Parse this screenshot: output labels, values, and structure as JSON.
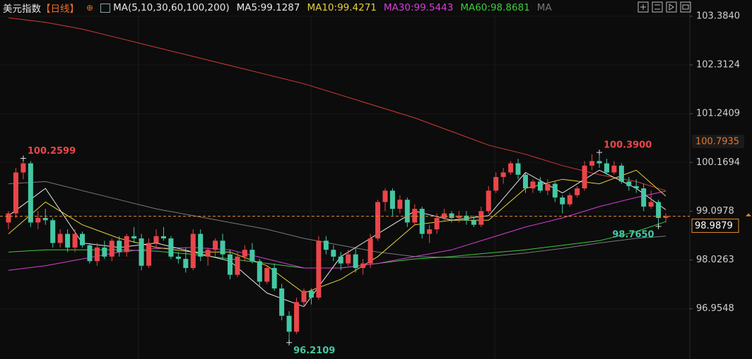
{
  "chart_data": {
    "type": "candlestick",
    "title": "美元指数",
    "period": "【日线】",
    "ma_label": "MA(5,10,30,60,100,200)",
    "legend": [
      {
        "text": "MA5:99.1287",
        "color": "#e8e8e8"
      },
      {
        "text": "MA10:99.4271",
        "color": "#e3d23c"
      },
      {
        "text": "MA30:99.5443",
        "color": "#d63fd6"
      },
      {
        "text": "MA60:98.8681",
        "color": "#3ccc3c"
      },
      {
        "text": "MA",
        "color": "#777777"
      }
    ],
    "up_color": "#e9464a",
    "down_color": "#44c8a4",
    "ylim": [
      95.85,
      103.74
    ],
    "yticks": [
      {
        "value": 103.384,
        "label": "103.3840"
      },
      102.3124,
      101.2409,
      100.1694,
      99.0978,
      98.0263,
      96.9548
    ],
    "open": [
      98.85,
      99.05,
      99.95,
      100.15,
      98.85,
      98.95,
      98.9,
      98.4,
      98.6,
      98.3,
      98.6,
      98.35,
      98.0,
      98.3,
      98.1,
      98.45,
      98.2,
      98.55,
      98.5,
      97.9,
      98.4,
      98.55,
      98.5,
      98.1,
      98.05,
      97.85,
      98.6,
      98.1,
      98.25,
      98.45,
      98.15,
      97.7,
      98.1,
      98.25,
      98.0,
      97.55,
      97.85,
      97.4,
      96.8,
      96.45,
      97.1,
      97.35,
      97.2,
      98.45,
      98.25,
      98.1,
      97.95,
      98.15,
      97.85,
      97.95,
      98.5,
      99.3,
      99.55,
      99.15,
      99.35,
      98.85,
      99.15,
      98.6,
      98.7,
      98.95,
      99.05,
      98.95,
      99.0,
      98.9,
      98.8,
      99.1,
      99.55,
      99.85,
      99.95,
      100.15,
      99.9,
      99.6,
      99.75,
      99.55,
      99.7,
      99.4,
      99.25,
      99.45,
      99.6,
      100.1,
      100.2,
      100.15,
      99.95,
      100.1,
      99.75,
      99.65,
      99.6,
      99.2,
      99.3,
      98.95
    ],
    "high": [
      99.1,
      100.05,
      100.2599,
      100.2,
      99.1,
      99.15,
      98.95,
      98.7,
      98.7,
      98.7,
      98.65,
      98.4,
      98.4,
      98.45,
      98.5,
      98.55,
      98.6,
      98.75,
      98.6,
      98.5,
      98.7,
      98.75,
      98.55,
      98.2,
      98.3,
      98.7,
      98.7,
      98.3,
      98.5,
      98.6,
      98.25,
      98.2,
      98.35,
      98.4,
      98.05,
      97.9,
      97.95,
      97.5,
      96.9,
      97.2,
      97.4,
      97.4,
      98.55,
      98.55,
      98.35,
      98.2,
      98.25,
      98.3,
      98.05,
      98.6,
      99.35,
      99.6,
      99.6,
      99.45,
      99.4,
      99.25,
      99.2,
      98.8,
      99.05,
      99.15,
      99.1,
      99.1,
      99.1,
      99.0,
      99.2,
      99.65,
      99.95,
      100.05,
      100.2,
      100.25,
      99.95,
      99.8,
      99.85,
      99.8,
      99.75,
      99.45,
      99.5,
      99.65,
      100.2,
      100.35,
      100.39,
      100.25,
      100.2,
      100.15,
      99.85,
      99.8,
      99.7,
      99.55,
      99.35,
      99.05
    ],
    "low": [
      98.7,
      98.95,
      99.8,
      98.75,
      98.7,
      98.8,
      98.3,
      98.3,
      98.2,
      98.2,
      98.3,
      97.95,
      97.9,
      98.05,
      98.0,
      98.1,
      98.1,
      98.4,
      97.8,
      97.85,
      98.3,
      98.45,
      98.05,
      97.95,
      97.75,
      97.8,
      98.0,
      97.9,
      98.1,
      98.05,
      97.6,
      97.65,
      98.0,
      97.95,
      97.45,
      97.5,
      97.35,
      96.7,
      96.2109,
      96.4,
      97.0,
      97.05,
      97.15,
      98.15,
      98.0,
      97.8,
      97.9,
      97.75,
      97.7,
      97.85,
      98.45,
      99.1,
      99.0,
      99.05,
      98.75,
      98.8,
      98.5,
      98.4,
      98.6,
      98.9,
      98.85,
      98.85,
      98.8,
      98.75,
      98.75,
      99.05,
      99.5,
      99.7,
      99.9,
      99.8,
      99.5,
      99.5,
      99.5,
      99.45,
      99.3,
      99.05,
      99.2,
      99.4,
      99.55,
      100.0,
      100.05,
      99.9,
      99.9,
      99.7,
      99.55,
      99.5,
      99.1,
      99.15,
      98.765,
      98.85
    ],
    "close": [
      99.05,
      99.95,
      100.15,
      98.85,
      98.95,
      98.9,
      98.4,
      98.6,
      98.3,
      98.6,
      98.35,
      98.0,
      98.3,
      98.1,
      98.45,
      98.2,
      98.55,
      98.5,
      97.9,
      98.4,
      98.55,
      98.5,
      98.1,
      98.05,
      97.85,
      98.6,
      98.1,
      98.25,
      98.45,
      98.15,
      97.7,
      98.1,
      98.25,
      98.0,
      97.55,
      97.85,
      97.4,
      96.8,
      96.45,
      97.1,
      97.35,
      97.2,
      98.45,
      98.25,
      98.1,
      97.95,
      98.15,
      97.85,
      97.95,
      98.5,
      99.3,
      99.55,
      99.15,
      99.35,
      98.85,
      99.15,
      98.6,
      98.7,
      98.95,
      99.05,
      98.95,
      99.0,
      98.9,
      98.8,
      99.1,
      99.55,
      99.85,
      99.95,
      100.15,
      99.9,
      99.6,
      99.75,
      99.55,
      99.7,
      99.4,
      99.25,
      99.45,
      99.6,
      100.1,
      100.2,
      100.15,
      99.95,
      100.1,
      99.75,
      99.65,
      99.6,
      99.2,
      99.3,
      98.95,
      98.99
    ],
    "series": [
      {
        "color": "#d23b35",
        "x": [
          0,
          5,
          10,
          15,
          20,
          25,
          30,
          35,
          40,
          45,
          50,
          55,
          60,
          65,
          70,
          75,
          80,
          85,
          89
        ],
        "values": [
          103.35,
          103.25,
          103.1,
          102.9,
          102.7,
          102.5,
          102.3,
          102.1,
          101.9,
          101.65,
          101.4,
          101.15,
          100.85,
          100.55,
          100.35,
          100.1,
          99.9,
          99.75,
          99.55
        ]
      },
      {
        "color": "#7a7a7a",
        "x": [
          0,
          5,
          10,
          15,
          20,
          25,
          30,
          35,
          40,
          45,
          50,
          55,
          60,
          65,
          70,
          75,
          80,
          85,
          89
        ],
        "values": [
          99.7,
          99.75,
          99.55,
          99.35,
          99.15,
          99.0,
          98.85,
          98.7,
          98.5,
          98.35,
          98.2,
          98.1,
          98.08,
          98.1,
          98.18,
          98.28,
          98.4,
          98.5,
          98.55
        ]
      },
      {
        "color": "#3ccc3c",
        "x": [
          0,
          5,
          10,
          15,
          20,
          25,
          30,
          35,
          40,
          45,
          50,
          55,
          60,
          65,
          70,
          75,
          80,
          85,
          89
        ],
        "values": [
          98.2,
          98.25,
          98.25,
          98.25,
          98.22,
          98.15,
          98.05,
          97.95,
          97.85,
          97.85,
          97.95,
          98.05,
          98.1,
          98.18,
          98.25,
          98.35,
          98.45,
          98.65,
          98.87
        ]
      },
      {
        "color": "#d63fd6",
        "x": [
          0,
          5,
          10,
          15,
          20,
          25,
          30,
          35,
          40,
          45,
          50,
          55,
          60,
          65,
          70,
          75,
          80,
          85,
          89
        ],
        "values": [
          97.8,
          97.9,
          98.05,
          98.2,
          98.28,
          98.3,
          98.25,
          98.05,
          97.85,
          97.85,
          97.95,
          98.1,
          98.25,
          98.5,
          98.75,
          98.95,
          99.2,
          99.4,
          99.54
        ]
      },
      {
        "color": "#e3d23c",
        "x": [
          0,
          5,
          10,
          15,
          20,
          25,
          30,
          35,
          40,
          45,
          50,
          55,
          60,
          65,
          70,
          75,
          80,
          85,
          89
        ],
        "values": [
          98.6,
          99.3,
          98.8,
          98.5,
          98.3,
          98.2,
          98.2,
          97.9,
          97.3,
          97.6,
          98.1,
          98.8,
          98.9,
          98.9,
          99.6,
          99.8,
          99.7,
          100.0,
          99.43
        ]
      },
      {
        "color": "#e8e8e8",
        "x": [
          0,
          5,
          10,
          15,
          20,
          25,
          30,
          35,
          40,
          45,
          50,
          55,
          60,
          65,
          70,
          75,
          80,
          85,
          89
        ],
        "values": [
          99.0,
          99.6,
          98.4,
          98.3,
          98.4,
          98.2,
          98.0,
          97.3,
          97.0,
          98.1,
          98.6,
          99.1,
          98.9,
          99.0,
          99.95,
          99.5,
          100.0,
          99.6,
          99.13
        ]
      }
    ],
    "annotations": [
      {
        "value": 100.2599,
        "color": "#e9464a"
      },
      {
        "value": 96.2109,
        "color": "#44c8a4"
      },
      {
        "value": {
          "value": 100.39,
          "label": "100.3900"
        },
        "color": "#e9464a"
      },
      {
        "value": {
          "value": 98.765,
          "label": "98.7650"
        },
        "color": "#44c8a4"
      }
    ],
    "marker_price": 100.7935,
    "last_price": 98.9879
  }
}
